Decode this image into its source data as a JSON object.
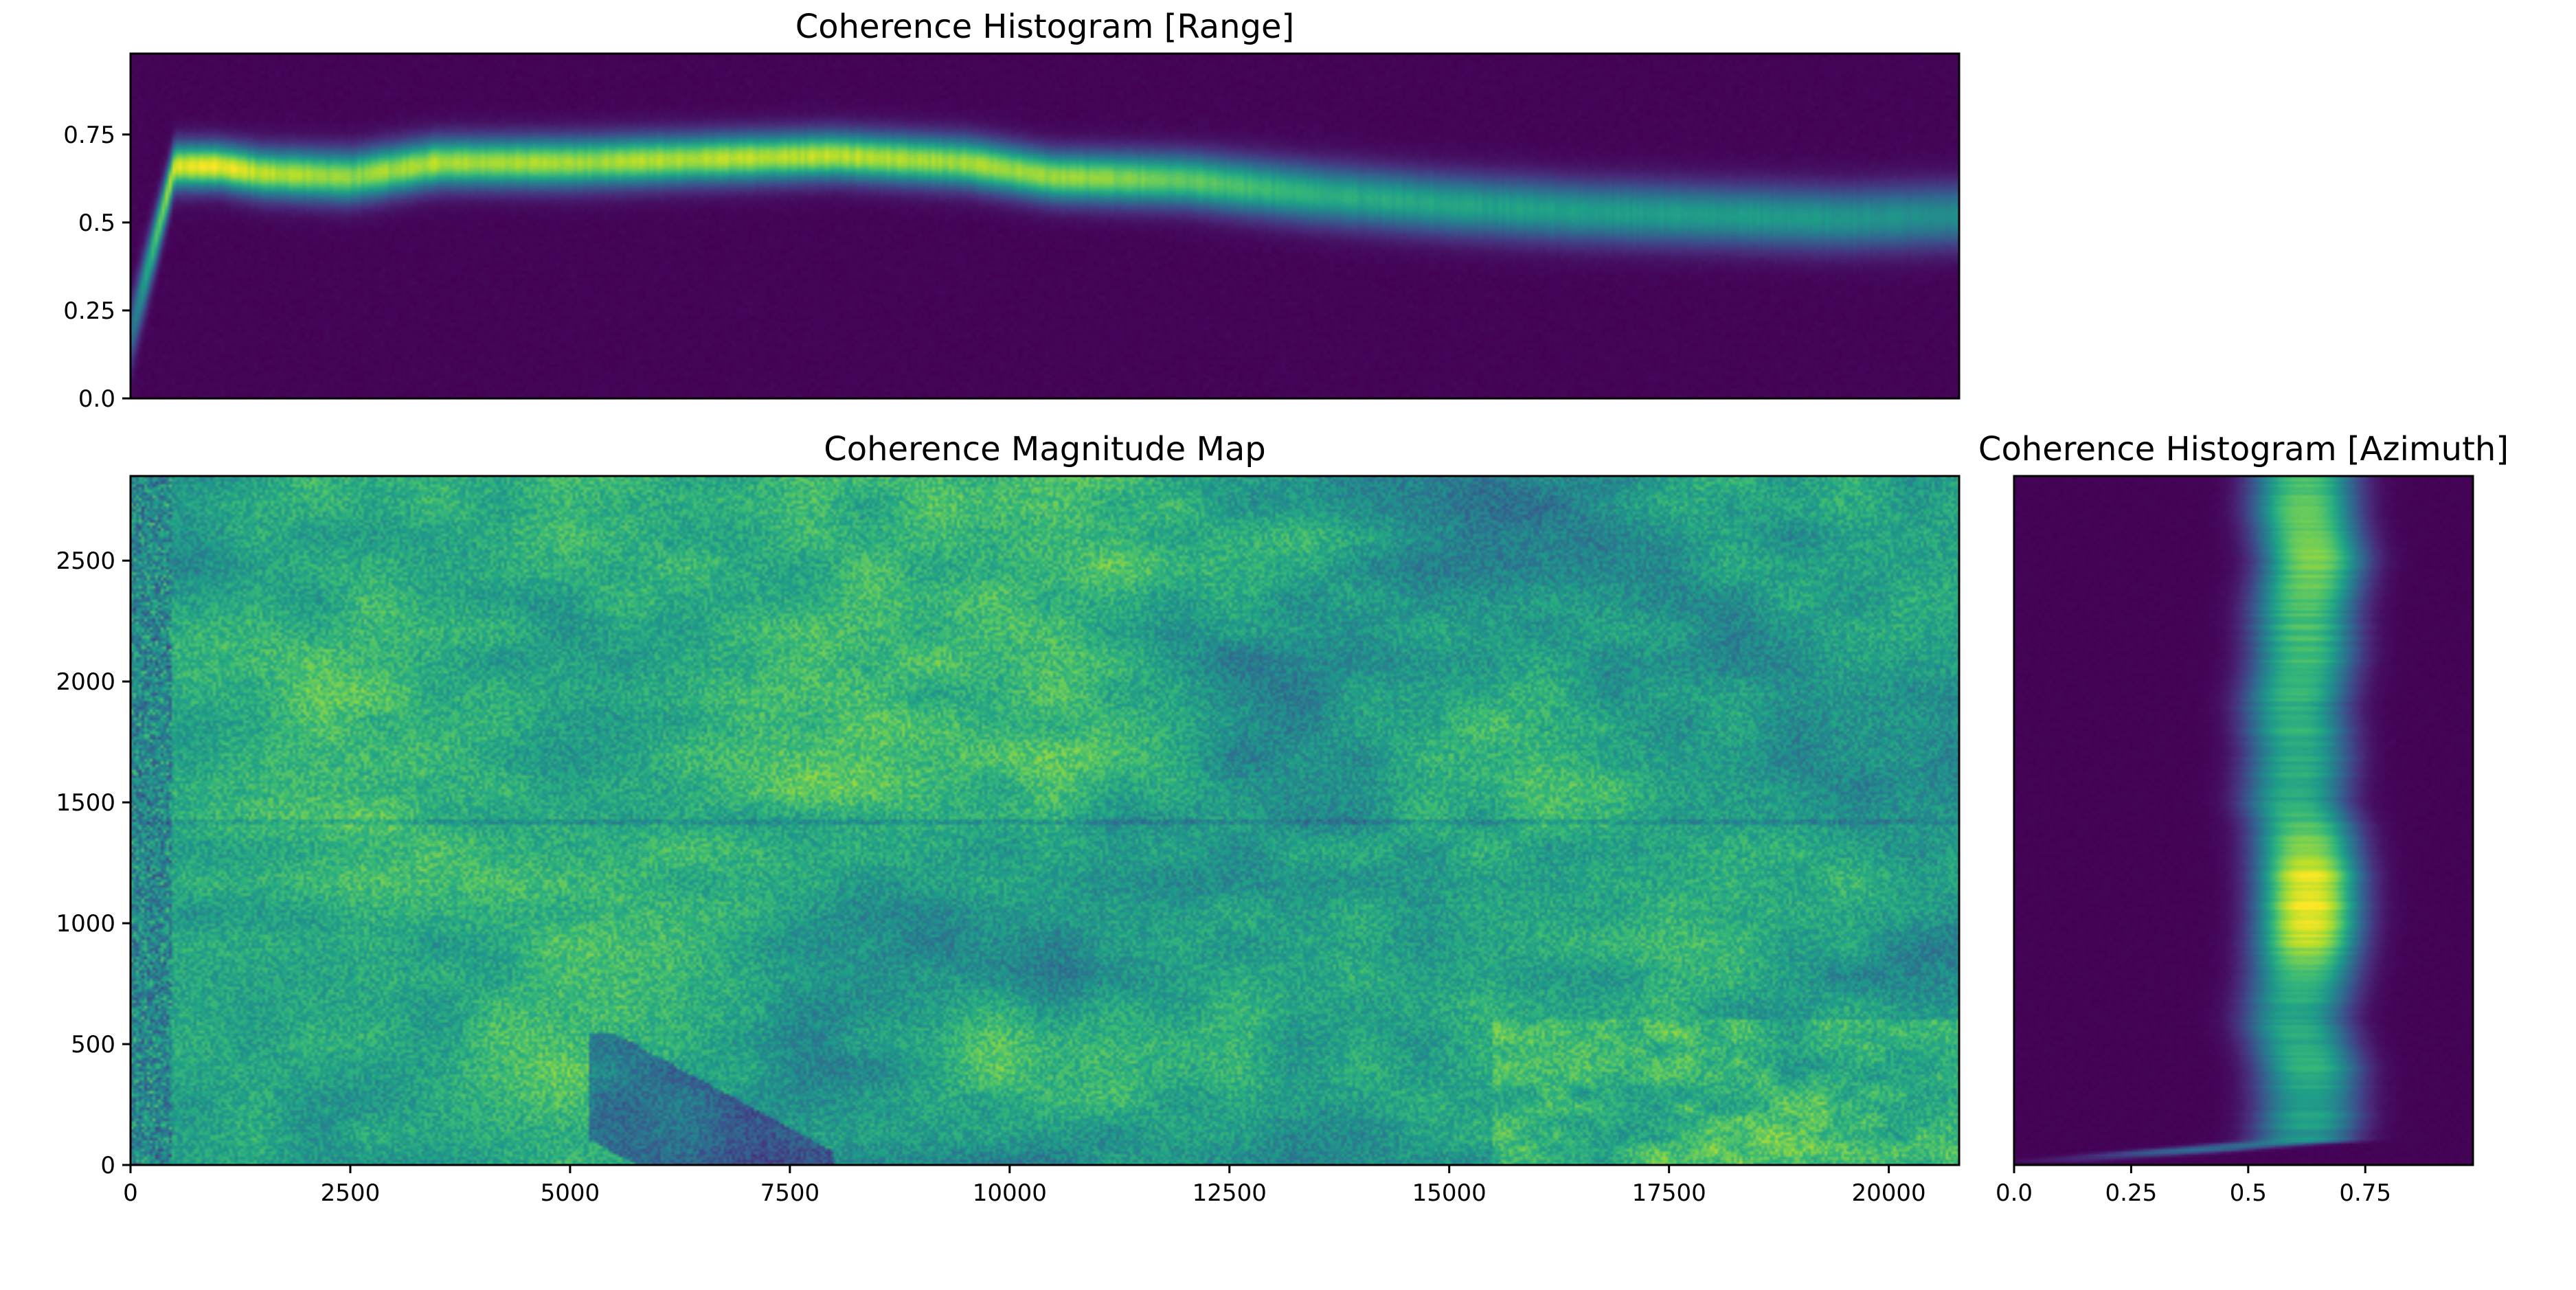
{
  "chart_data": [
    {
      "type": "heatmap",
      "title": "Coherence Histogram [Range]",
      "xlabel": "",
      "ylabel": "",
      "colormap": "viridis",
      "x_shared_with": "Coherence Magnitude Map",
      "xlim": [
        0,
        20800
      ],
      "ylim": [
        0,
        0.98
      ],
      "y_ticks": [
        0.0,
        0.25,
        0.5,
        0.75
      ],
      "y_tick_labels": [
        "0.0",
        "0.25",
        "0.5",
        "0.75"
      ],
      "x_tick_labels_shown": false,
      "ridge_profile": {
        "x": [
          0,
          500,
          1000,
          1500,
          2500,
          3500,
          5000,
          6500,
          8000,
          9500,
          10500,
          12000,
          13500,
          15000,
          16500,
          18000,
          19500,
          20800
        ],
        "peak_coherence": [
          0.18,
          0.66,
          0.66,
          0.64,
          0.63,
          0.67,
          0.67,
          0.68,
          0.69,
          0.67,
          0.63,
          0.62,
          0.58,
          0.55,
          0.53,
          0.52,
          0.51,
          0.52
        ],
        "peak_density": [
          0.35,
          0.95,
          0.97,
          0.9,
          0.82,
          0.88,
          0.85,
          0.88,
          0.9,
          0.85,
          0.85,
          0.75,
          0.62,
          0.58,
          0.55,
          0.55,
          0.52,
          0.48
        ]
      },
      "grid": false
    },
    {
      "type": "heatmap",
      "title": "Coherence Magnitude Map",
      "xlabel": "",
      "ylabel": "",
      "colormap": "viridis",
      "xlim": [
        0,
        20800
      ],
      "ylim": [
        0,
        2850
      ],
      "x_ticks": [
        0,
        2500,
        5000,
        7500,
        10000,
        12500,
        15000,
        17500,
        20000
      ],
      "x_tick_labels": [
        "0",
        "2500",
        "5000",
        "7500",
        "10000",
        "12500",
        "15000",
        "17500",
        "20000"
      ],
      "y_ticks": [
        0,
        500,
        1000,
        1500,
        2000,
        2500
      ],
      "y_tick_labels": [
        "0",
        "500",
        "1000",
        "1500",
        "2000",
        "2500"
      ],
      "mean_coherence": 0.6,
      "notes_features": {
        "low_coherence_band_x": [
          0,
          480
        ],
        "horizontal_line_y": 1420,
        "low_coherence_region": {
          "x": [
            5200,
            8000
          ],
          "y": [
            0,
            550
          ]
        },
        "high_coherence_region": {
          "x": [
            15500,
            20800
          ],
          "y": [
            0,
            600
          ]
        }
      },
      "grid": false
    },
    {
      "type": "heatmap",
      "title": "Coherence Histogram [Azimuth]",
      "xlabel": "",
      "ylabel": "",
      "colormap": "viridis",
      "y_shared_with": "Coherence Magnitude Map",
      "xlim": [
        0,
        0.98
      ],
      "ylim": [
        0,
        2850
      ],
      "x_ticks": [
        0.0,
        0.25,
        0.5,
        0.75
      ],
      "x_tick_labels": [
        "0.0",
        "0.25",
        "0.5",
        "0.75"
      ],
      "y_tick_labels_shown": false,
      "ridge_profile": {
        "y": [
          0,
          100,
          200,
          400,
          600,
          800,
          1000,
          1200,
          1400,
          1500,
          1700,
          1900,
          2100,
          2300,
          2500,
          2700,
          2850
        ],
        "peak_coherence": [
          0.0,
          0.62,
          0.63,
          0.63,
          0.6,
          0.62,
          0.63,
          0.63,
          0.62,
          0.6,
          0.61,
          0.6,
          0.62,
          0.62,
          0.64,
          0.62,
          0.62
        ],
        "peak_density": [
          0.0,
          0.5,
          0.55,
          0.62,
          0.58,
          0.7,
          0.98,
          0.95,
          0.72,
          0.6,
          0.62,
          0.64,
          0.68,
          0.7,
          0.78,
          0.75,
          0.7
        ]
      },
      "grid": false
    }
  ]
}
